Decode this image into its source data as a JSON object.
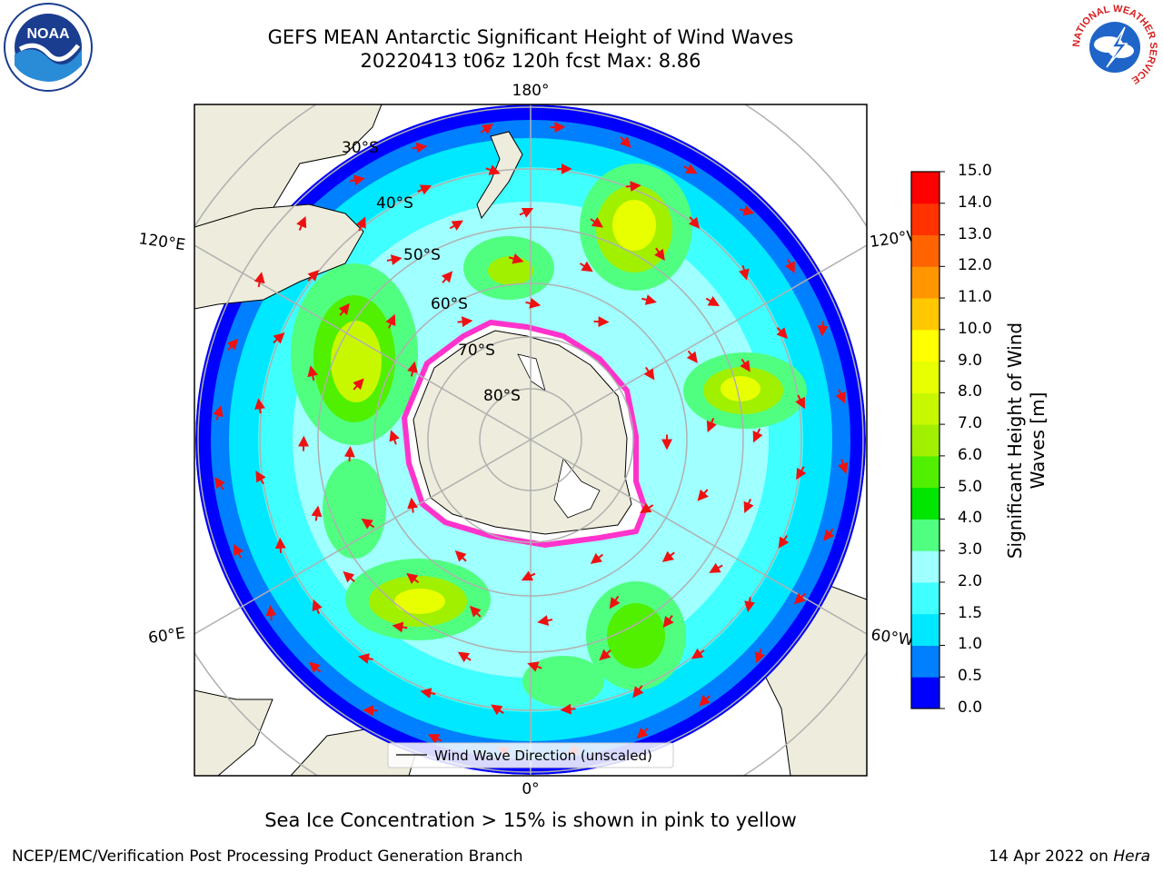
{
  "title_line1": "GEFS MEAN Antarctic Significant Height of Wind Waves",
  "title_line2": "20220413 t06z 120h fcst   Max: 8.86",
  "logos": {
    "left": {
      "icon": "noaa-logo",
      "text": "NOAA"
    },
    "right": {
      "icon": "national-weather-service-logo",
      "ring_text": "NATIONAL WEATHER SERVICE"
    }
  },
  "map": {
    "projection": "south-polar-stereographic",
    "longitude_labels": {
      "top": "180°",
      "bottom": "0°",
      "upper_left": "120°E",
      "upper_right": "120°W",
      "lower_left": "60°E",
      "lower_right": "60°W"
    },
    "latitude_labels": [
      "30°S",
      "40°S",
      "50°S",
      "60°S",
      "70°S",
      "80°S"
    ],
    "legend_label": "Wind Wave Direction (unscaled)",
    "colors": {
      "land": "#eeecdc",
      "sea_ice_edge": "#ff33cc",
      "arrows": "#ee1111",
      "grid": "#b0b0b0"
    }
  },
  "colorbar": {
    "title": "Significant Height of Wind Waves [m]",
    "ticks": [
      "0.0",
      "0.5",
      "1.0",
      "1.5",
      "2.0",
      "3.0",
      "4.0",
      "5.0",
      "6.0",
      "7.0",
      "8.0",
      "9.0",
      "10.0",
      "11.0",
      "12.0",
      "13.0",
      "14.0",
      "15.0"
    ],
    "colors": [
      "#0000ff",
      "#0080ff",
      "#00e8ff",
      "#40ffff",
      "#a0ffff",
      "#50ff80",
      "#00e600",
      "#50f000",
      "#a0f000",
      "#c8f800",
      "#e8ff00",
      "#ffff00",
      "#ffc800",
      "#ff9600",
      "#ff6400",
      "#ff3200",
      "#ff0000"
    ]
  },
  "sea_ice_note": "Sea Ice Concentration > 15% is shown in pink to yellow",
  "footer": {
    "left": "NCEP/EMC/Verification Post Processing Product Generation Branch",
    "right_prefix": "14 Apr 2022 on ",
    "right_machine": "Hera"
  }
}
